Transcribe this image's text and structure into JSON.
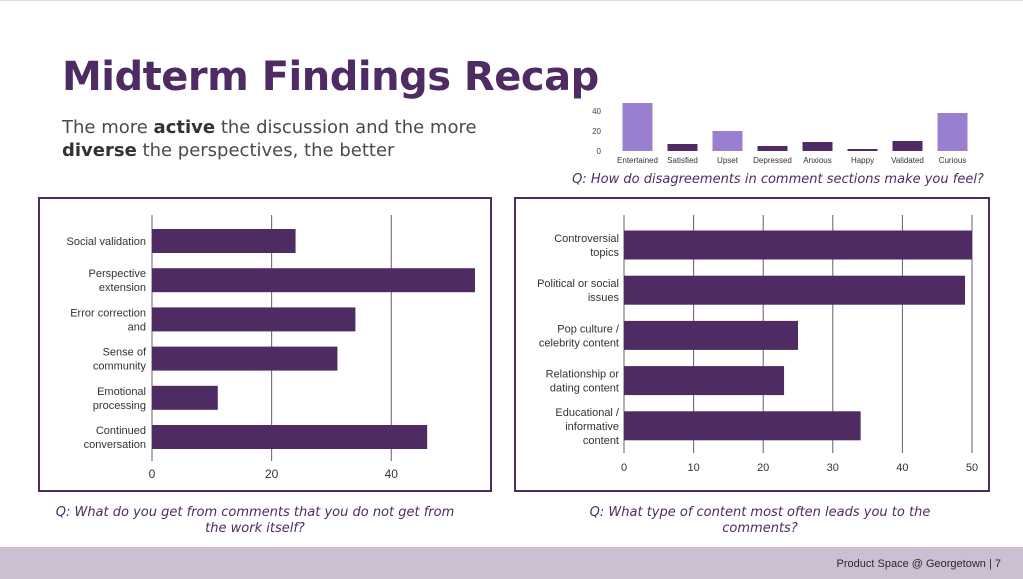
{
  "slide": {
    "title": "Midterm Findings Recap",
    "subtitle": {
      "p1": "The more ",
      "b1": "active",
      "p2": " the discussion and the more ",
      "b2": "diverse",
      "p3": " the perspectives, the better"
    },
    "footer": "Product Space @ Georgetown | 7"
  },
  "colors": {
    "dark_purple": "#4f2b63",
    "light_purple": "#9a7fd1",
    "footer_bg": "#cbbfd2"
  },
  "chart_data": [
    {
      "id": "feelings",
      "type": "bar",
      "orientation": "vertical",
      "categories": [
        "Entertained",
        "Satisfied",
        "Upset",
        "Depressed",
        "Anxious",
        "Happy",
        "Validated",
        "Curious"
      ],
      "values": [
        48,
        7,
        20,
        5,
        9,
        2,
        10,
        38
      ],
      "highlight": [
        true,
        false,
        true,
        false,
        false,
        false,
        false,
        true
      ],
      "ylim": [
        0,
        50
      ],
      "ticks": [
        0,
        20,
        40
      ],
      "caption": "Q: How do disagreements in comment sections make you feel?"
    },
    {
      "id": "benefits",
      "type": "bar",
      "orientation": "horizontal",
      "categories": [
        [
          "Social validation"
        ],
        [
          "Perspective",
          "extension"
        ],
        [
          "Error correction",
          "and"
        ],
        [
          "Sense of",
          "community"
        ],
        [
          "Emotional",
          "processing"
        ],
        [
          "Continued",
          "conversation"
        ]
      ],
      "values": [
        24,
        54,
        34,
        31,
        11,
        46
      ],
      "xlim": [
        0,
        55
      ],
      "ticks": [
        0,
        20,
        40
      ],
      "caption": "Q: What do you get from comments that you do not get from the work itself?"
    },
    {
      "id": "content",
      "type": "bar",
      "orientation": "horizontal",
      "categories": [
        [
          "Controversial",
          "topics"
        ],
        [
          "Political or social",
          "issues"
        ],
        [
          "Pop culture /",
          "celebrity content"
        ],
        [
          "Relationship or",
          "dating content"
        ],
        [
          "Educational /",
          "informative",
          "content"
        ]
      ],
      "values": [
        50,
        49,
        25,
        23,
        34
      ],
      "xlim": [
        0,
        50
      ],
      "ticks": [
        0,
        10,
        20,
        30,
        40,
        50
      ],
      "caption": "Q: What type of content most often leads you to the comments?"
    }
  ]
}
